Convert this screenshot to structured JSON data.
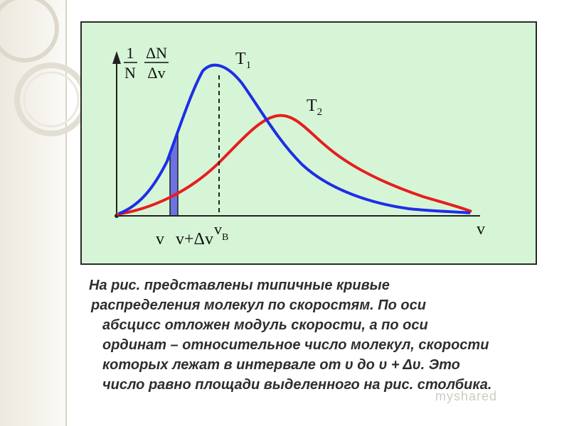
{
  "figure": {
    "y_axis_label": {
      "numerator_1": "1",
      "denominator_1": "N",
      "numerator_2": "ΔN",
      "denominator_2": "Δv"
    },
    "x_axis_label": "v",
    "curve_1_label": {
      "base": "T",
      "sub": "1"
    },
    "curve_2_label": {
      "base": "T",
      "sub": "2"
    },
    "tick_v": "v",
    "tick_v_dv": "v+Δv",
    "tick_vb": {
      "base": "v",
      "sub": "B"
    },
    "colors": {
      "curve_1": "#1f2ee6",
      "curve_2": "#e61e1e",
      "highlight_bar": "#6c73e0",
      "panel_background": "#d6f5d6"
    }
  },
  "caption": {
    "line_1": "На рис. представлены типичные кривые",
    "line_2": "распределения молекул по скоростям. По оси",
    "line_3": "абсцисс отложен модуль скорости, а по оси",
    "line_4": "ординат – относительное число молекул, скорости",
    "line_5": "которых лежат в интервале от υ до υ + Δυ. Это",
    "line_6": "число равно площади выделенного на рис. столбика."
  },
  "watermark": "myshared"
}
